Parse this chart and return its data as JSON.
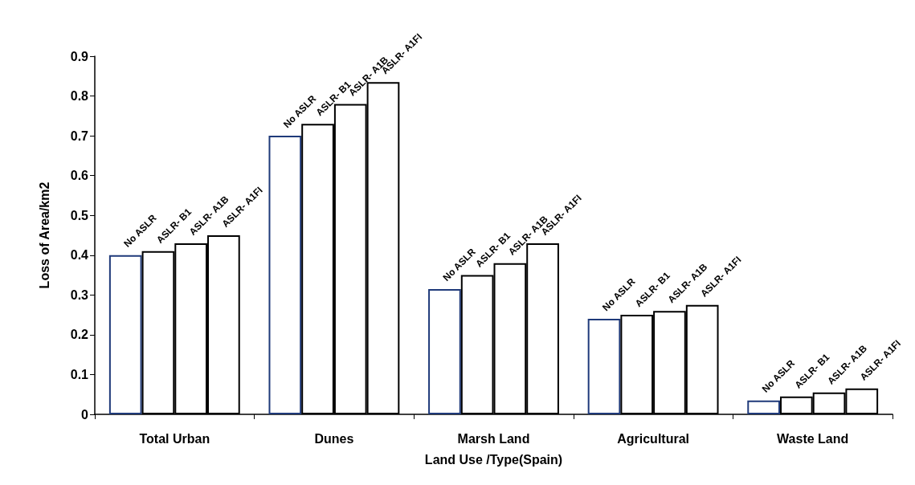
{
  "chart_data": {
    "type": "bar",
    "xlabel": "Land Use /Type(Spain)",
    "ylabel": "Loss of Area/km2",
    "categories": [
      "Total Urban",
      "Dunes",
      "Marsh Land",
      "Agricultural",
      "Waste Land"
    ],
    "series": [
      {
        "name": "No ASLR",
        "color": "#1f3a7a",
        "values": [
          0.4,
          0.7,
          0.315,
          0.24,
          0.035
        ]
      },
      {
        "name": "ASLR- B1",
        "color": "#000000",
        "values": [
          0.41,
          0.73,
          0.35,
          0.25,
          0.045
        ]
      },
      {
        "name": "ASLR- A1B",
        "color": "#000000",
        "values": [
          0.43,
          0.78,
          0.38,
          0.26,
          0.055
        ]
      },
      {
        "name": "ASLR- A1FI",
        "color": "#000000",
        "values": [
          0.45,
          0.835,
          0.43,
          0.275,
          0.065
        ]
      }
    ],
    "ylim": [
      0,
      0.9
    ],
    "yticks": [
      0,
      0.1,
      0.2,
      0.3,
      0.4,
      0.5,
      0.6,
      0.7,
      0.8,
      0.9
    ],
    "grid": false,
    "legend": false
  }
}
